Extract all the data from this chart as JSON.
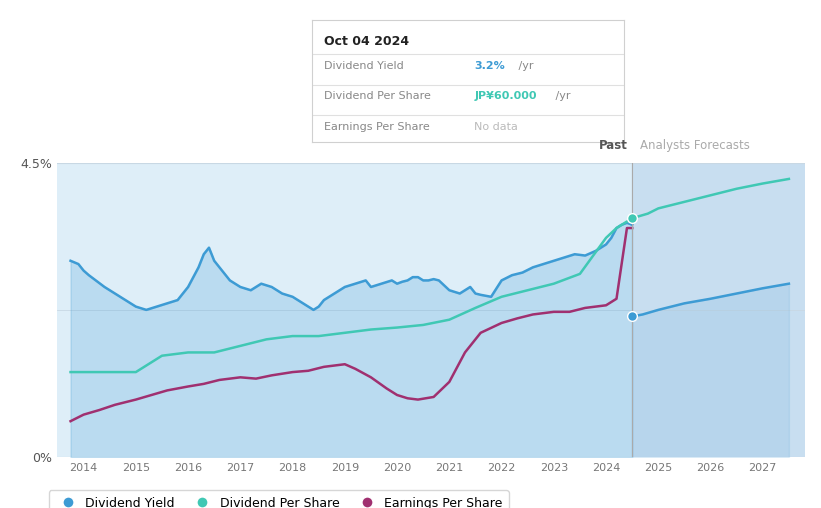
{
  "bg_color": "#ffffff",
  "plot_bg_color": "#deeef8",
  "forecast_bg_color": "#c8def0",
  "ylim": [
    0,
    4.5
  ],
  "xmin": 2013.5,
  "xmax": 2027.8,
  "past_line_x": 2024.5,
  "colors": {
    "dividend_yield": "#3d9bd4",
    "dividend_per_share": "#40c8b4",
    "earnings_per_share": "#a03070",
    "fill_alpha": 0.22
  },
  "dividend_yield_past": {
    "x": [
      2013.75,
      2013.9,
      2014.0,
      2014.1,
      2014.2,
      2014.4,
      2014.6,
      2014.8,
      2015.0,
      2015.2,
      2015.4,
      2015.6,
      2015.8,
      2016.0,
      2016.2,
      2016.3,
      2016.4,
      2016.5,
      2016.7,
      2016.8,
      2017.0,
      2017.2,
      2017.4,
      2017.6,
      2017.8,
      2018.0,
      2018.2,
      2018.3,
      2018.4,
      2018.5,
      2018.6,
      2018.8,
      2019.0,
      2019.2,
      2019.4,
      2019.5,
      2019.7,
      2019.9,
      2020.0,
      2020.1,
      2020.2,
      2020.3,
      2020.4,
      2020.5,
      2020.6,
      2020.7,
      2020.8,
      2021.0,
      2021.2,
      2021.3,
      2021.4,
      2021.5,
      2021.6,
      2021.8,
      2022.0,
      2022.2,
      2022.4,
      2022.6,
      2022.8,
      2023.0,
      2023.2,
      2023.4,
      2023.6,
      2023.8,
      2024.0,
      2024.1,
      2024.2,
      2024.3,
      2024.4,
      2024.5
    ],
    "y": [
      3.0,
      2.95,
      2.85,
      2.78,
      2.72,
      2.6,
      2.5,
      2.4,
      2.3,
      2.25,
      2.3,
      2.35,
      2.4,
      2.6,
      2.9,
      3.1,
      3.2,
      3.0,
      2.8,
      2.7,
      2.6,
      2.55,
      2.65,
      2.6,
      2.5,
      2.45,
      2.35,
      2.3,
      2.25,
      2.3,
      2.4,
      2.5,
      2.6,
      2.65,
      2.7,
      2.6,
      2.65,
      2.7,
      2.65,
      2.68,
      2.7,
      2.75,
      2.75,
      2.7,
      2.7,
      2.72,
      2.7,
      2.55,
      2.5,
      2.55,
      2.6,
      2.5,
      2.48,
      2.45,
      2.7,
      2.78,
      2.82,
      2.9,
      2.95,
      3.0,
      3.05,
      3.1,
      3.08,
      3.15,
      3.25,
      3.35,
      3.5,
      3.55,
      3.58,
      3.55
    ]
  },
  "dividend_yield_forecast": {
    "x": [
      2024.5,
      2024.7,
      2025.0,
      2025.5,
      2026.0,
      2026.5,
      2027.0,
      2027.5
    ],
    "y": [
      2.15,
      2.18,
      2.25,
      2.35,
      2.42,
      2.5,
      2.58,
      2.65
    ]
  },
  "dividend_per_share_past": {
    "x": [
      2013.75,
      2014.0,
      2014.5,
      2015.0,
      2015.5,
      2016.0,
      2016.5,
      2017.0,
      2017.5,
      2018.0,
      2018.5,
      2019.0,
      2019.5,
      2020.0,
      2020.5,
      2021.0,
      2021.5,
      2022.0,
      2022.5,
      2023.0,
      2023.5,
      2024.0,
      2024.2,
      2024.4,
      2024.5
    ],
    "y": [
      1.3,
      1.3,
      1.3,
      1.3,
      1.55,
      1.6,
      1.6,
      1.7,
      1.8,
      1.85,
      1.85,
      1.9,
      1.95,
      1.98,
      2.02,
      2.1,
      2.28,
      2.45,
      2.55,
      2.65,
      2.8,
      3.35,
      3.5,
      3.6,
      3.6
    ]
  },
  "dividend_per_share_forecast": {
    "x": [
      2024.5,
      2024.8,
      2025.0,
      2025.5,
      2026.0,
      2026.5,
      2027.0,
      2027.5
    ],
    "y": [
      3.65,
      3.72,
      3.8,
      3.9,
      4.0,
      4.1,
      4.18,
      4.25
    ]
  },
  "earnings_per_share_past": {
    "x": [
      2013.75,
      2014.0,
      2014.3,
      2014.6,
      2015.0,
      2015.3,
      2015.6,
      2016.0,
      2016.3,
      2016.6,
      2017.0,
      2017.3,
      2017.6,
      2018.0,
      2018.3,
      2018.6,
      2019.0,
      2019.2,
      2019.5,
      2019.8,
      2020.0,
      2020.2,
      2020.4,
      2020.7,
      2021.0,
      2021.3,
      2021.6,
      2022.0,
      2022.3,
      2022.6,
      2023.0,
      2023.3,
      2023.6,
      2024.0,
      2024.2,
      2024.4,
      2024.5
    ],
    "y": [
      0.55,
      0.65,
      0.72,
      0.8,
      0.88,
      0.95,
      1.02,
      1.08,
      1.12,
      1.18,
      1.22,
      1.2,
      1.25,
      1.3,
      1.32,
      1.38,
      1.42,
      1.35,
      1.22,
      1.05,
      0.95,
      0.9,
      0.88,
      0.92,
      1.15,
      1.6,
      1.9,
      2.05,
      2.12,
      2.18,
      2.22,
      2.22,
      2.28,
      2.32,
      2.42,
      3.5,
      3.5
    ]
  },
  "legend": [
    {
      "label": "Dividend Yield",
      "color": "#3d9bd4"
    },
    {
      "label": "Dividend Per Share",
      "color": "#40c8b4"
    },
    {
      "label": "Earnings Per Share",
      "color": "#a03070"
    }
  ],
  "tooltip": {
    "date": "Oct 04 2024",
    "dy_label": "Dividend Yield",
    "dy_value": "3.2%",
    "dy_unit": " /yr",
    "dps_label": "Dividend Per Share",
    "dps_value": "JP¥60.000",
    "dps_unit": " /yr",
    "eps_label": "Earnings Per Share",
    "eps_value": "No data"
  },
  "dot_dy_y": 2.15,
  "dot_dps_y": 3.65
}
